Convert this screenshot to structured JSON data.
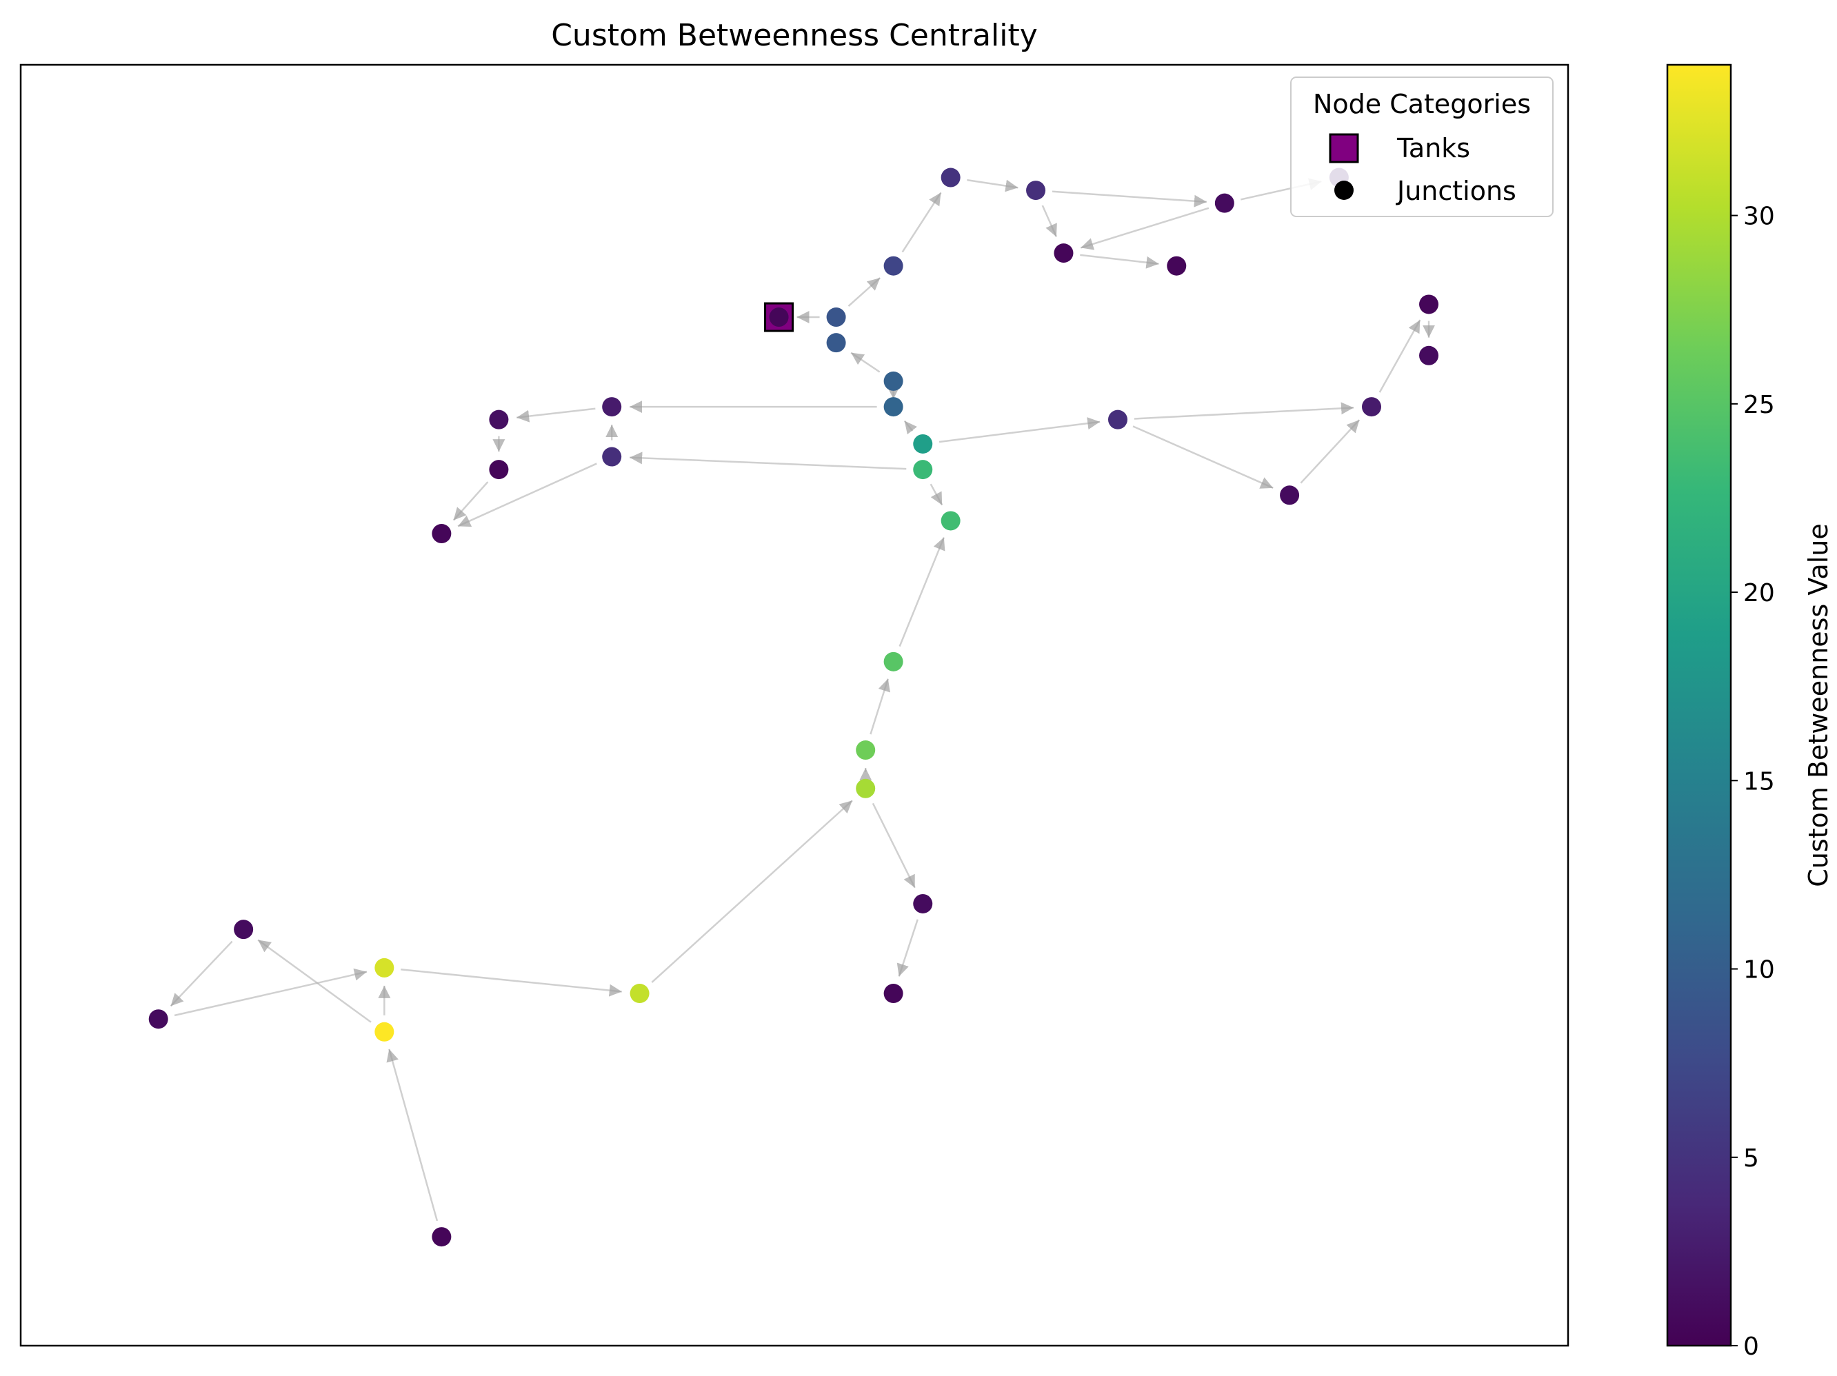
{
  "title": "Custom Betweenness Centrality",
  "legend": {
    "title": "Node Categories",
    "items": [
      {
        "label": "Tanks",
        "marker": "square",
        "color": "#800080"
      },
      {
        "label": "Junctions",
        "marker": "circle",
        "color": "#000000"
      }
    ]
  },
  "colorbar": {
    "label": "Custom Betweenness Value",
    "min": 0,
    "max": 34,
    "ticks": [
      "0",
      "5",
      "10",
      "15",
      "20",
      "25",
      "30"
    ],
    "tick_values": [
      0,
      5,
      10,
      15,
      20,
      25,
      30
    ],
    "colormap": "viridis"
  },
  "chart_data": {
    "type": "network",
    "x_range": [
      0,
      100
    ],
    "y_range": [
      0,
      100
    ],
    "nodes": [
      {
        "id": "T1",
        "type": "tank",
        "x": 49.0,
        "y": 80.3,
        "value": 0.5
      },
      {
        "id": "A1",
        "type": "junction",
        "x": 52.7,
        "y": 80.3,
        "value": 9
      },
      {
        "id": "A2",
        "type": "junction",
        "x": 52.7,
        "y": 78.3,
        "value": 9.5
      },
      {
        "id": "A3",
        "type": "junction",
        "x": 56.4,
        "y": 84.3,
        "value": 7
      },
      {
        "id": "A4",
        "type": "junction",
        "x": 60.1,
        "y": 91.2,
        "value": 5
      },
      {
        "id": "A5",
        "type": "junction",
        "x": 65.6,
        "y": 90.2,
        "value": 4.5
      },
      {
        "id": "A6",
        "type": "junction",
        "x": 77.8,
        "y": 89.2,
        "value": 1
      },
      {
        "id": "A7",
        "type": "junction",
        "x": 85.2,
        "y": 91.2,
        "value": 3
      },
      {
        "id": "A8",
        "type": "junction",
        "x": 67.4,
        "y": 85.3,
        "value": 0.5
      },
      {
        "id": "A9",
        "type": "junction",
        "x": 74.7,
        "y": 84.3,
        "value": 0.5
      },
      {
        "id": "B1",
        "type": "junction",
        "x": 56.4,
        "y": 75.3,
        "value": 10.5
      },
      {
        "id": "B2",
        "type": "junction",
        "x": 56.4,
        "y": 73.3,
        "value": 11
      },
      {
        "id": "B3",
        "type": "junction",
        "x": 58.3,
        "y": 70.4,
        "value": 19
      },
      {
        "id": "B4",
        "type": "junction",
        "x": 58.3,
        "y": 68.4,
        "value": 23
      },
      {
        "id": "B5",
        "type": "junction",
        "x": 60.1,
        "y": 64.4,
        "value": 23.5
      },
      {
        "id": "C1",
        "type": "junction",
        "x": 38.2,
        "y": 73.3,
        "value": 2.5
      },
      {
        "id": "C2",
        "type": "junction",
        "x": 38.2,
        "y": 69.4,
        "value": 4.5
      },
      {
        "id": "C3",
        "type": "junction",
        "x": 30.9,
        "y": 72.3,
        "value": 1.5
      },
      {
        "id": "C4",
        "type": "junction",
        "x": 30.9,
        "y": 68.4,
        "value": 0.5
      },
      {
        "id": "C5",
        "type": "junction",
        "x": 27.2,
        "y": 63.4,
        "value": 0.5
      },
      {
        "id": "D1",
        "type": "junction",
        "x": 70.9,
        "y": 72.3,
        "value": 4.5
      },
      {
        "id": "D2",
        "type": "junction",
        "x": 82.0,
        "y": 66.4,
        "value": 1
      },
      {
        "id": "D3",
        "type": "junction",
        "x": 87.3,
        "y": 73.3,
        "value": 2.5
      },
      {
        "id": "D4",
        "type": "junction",
        "x": 91.0,
        "y": 77.3,
        "value": 1
      },
      {
        "id": "D5",
        "type": "junction",
        "x": 91.0,
        "y": 81.3,
        "value": 0.5
      },
      {
        "id": "E1",
        "type": "junction",
        "x": 56.4,
        "y": 53.4,
        "value": 25
      },
      {
        "id": "E2",
        "type": "junction",
        "x": 54.6,
        "y": 46.5,
        "value": 26.5
      },
      {
        "id": "E3",
        "type": "junction",
        "x": 54.6,
        "y": 43.5,
        "value": 29.5
      },
      {
        "id": "E4",
        "type": "junction",
        "x": 58.3,
        "y": 34.5,
        "value": 1
      },
      {
        "id": "E5",
        "type": "junction",
        "x": 56.4,
        "y": 27.5,
        "value": 0.5
      },
      {
        "id": "F1",
        "type": "junction",
        "x": 40.0,
        "y": 27.5,
        "value": 31
      },
      {
        "id": "F2",
        "type": "junction",
        "x": 23.5,
        "y": 29.5,
        "value": 32
      },
      {
        "id": "F3",
        "type": "junction",
        "x": 23.5,
        "y": 24.5,
        "value": 34
      },
      {
        "id": "F4",
        "type": "junction",
        "x": 14.4,
        "y": 32.5,
        "value": 1
      },
      {
        "id": "F5",
        "type": "junction",
        "x": 8.9,
        "y": 25.5,
        "value": 1
      },
      {
        "id": "F6",
        "type": "junction",
        "x": 27.2,
        "y": 8.5,
        "value": 0.5
      }
    ],
    "edges": [
      [
        "A1",
        "T1"
      ],
      [
        "A1",
        "A3"
      ],
      [
        "A3",
        "A4"
      ],
      [
        "A4",
        "A5"
      ],
      [
        "A5",
        "A6"
      ],
      [
        "A5",
        "A8"
      ],
      [
        "A6",
        "A7"
      ],
      [
        "A6",
        "A8"
      ],
      [
        "A8",
        "A9"
      ],
      [
        "B1",
        "A2"
      ],
      [
        "B2",
        "B1"
      ],
      [
        "B3",
        "B2"
      ],
      [
        "B3",
        "D1"
      ],
      [
        "B4",
        "B5"
      ],
      [
        "B2",
        "C1"
      ],
      [
        "B4",
        "C2"
      ],
      [
        "C1",
        "C3"
      ],
      [
        "C3",
        "C4"
      ],
      [
        "C4",
        "C5"
      ],
      [
        "C2",
        "C1"
      ],
      [
        "C2",
        "C5"
      ],
      [
        "D1",
        "D3"
      ],
      [
        "D1",
        "D2"
      ],
      [
        "D2",
        "D3"
      ],
      [
        "D3",
        "D5"
      ],
      [
        "D5",
        "D4"
      ],
      [
        "E1",
        "B5"
      ],
      [
        "E2",
        "E1"
      ],
      [
        "E3",
        "E2"
      ],
      [
        "E3",
        "E4"
      ],
      [
        "E4",
        "E5"
      ],
      [
        "F1",
        "E3"
      ],
      [
        "F2",
        "F1"
      ],
      [
        "F3",
        "F2"
      ],
      [
        "F3",
        "F4"
      ],
      [
        "F4",
        "F5"
      ],
      [
        "F5",
        "F2"
      ],
      [
        "F6",
        "F3"
      ]
    ]
  }
}
